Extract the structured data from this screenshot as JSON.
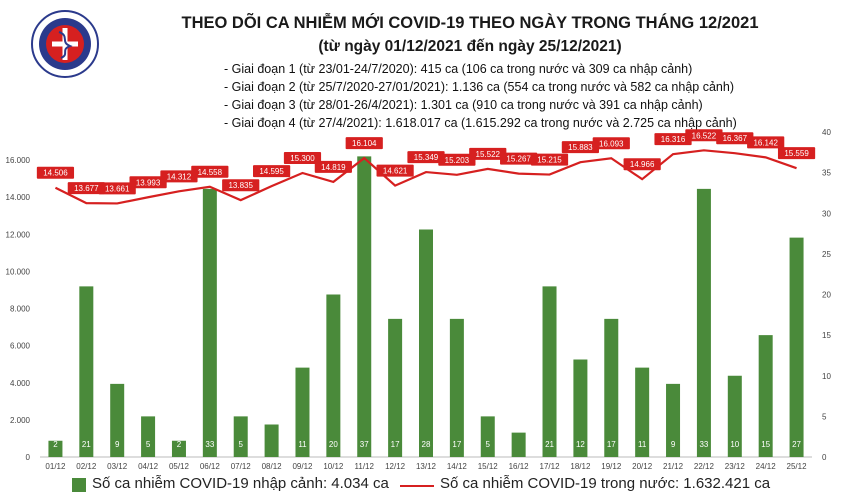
{
  "header": {
    "title": "THEO DÕI CA NHIỄM MỚI COVID-19 THEO NGÀY TRONG THÁNG 12/2021",
    "subtitle": "(từ ngày 01/12/2021 đến ngày 25/12/2021)",
    "phases": [
      "- Giai đoạn 1 (từ 23/01-24/7/2020): 415 ca (106 ca trong nước và 309 ca nhập cảnh)",
      "- Giai đoạn 2 (từ 25/7/2020-27/01/2021): 1.136 ca (554 ca trong nước và 582 ca nhập cảnh)",
      "- Giai đoạn 3 (từ 28/01-26/4/2021): 1.301 ca (910 ca trong nước và 391 ca nhập cảnh)",
      "- Giai đoạn 4 (từ 27/4/2021): 1.618.017 ca (1.615.292 ca trong nước và 2.725 ca nhập cảnh)"
    ]
  },
  "logo": {
    "text": "BỘ Y TẾ",
    "subtext": "MINISTRY OF HEALTH"
  },
  "legend": {
    "bar_label": "Số ca nhiễm COVID-19 nhập cảnh: 4.034 ca",
    "line_label": "Số ca nhiễm COVID-19 trong nước: 1.632.421 ca"
  },
  "colors": {
    "bar": "#4a8a3a",
    "line": "#d62020",
    "label_bg": "#d62020",
    "title": "#1a1a1a"
  },
  "chart_data": {
    "type": "bar",
    "categories": [
      "01/12",
      "02/12",
      "03/12",
      "04/12",
      "05/12",
      "06/12",
      "07/12",
      "08/12",
      "09/12",
      "10/12",
      "11/12",
      "12/12",
      "13/12",
      "14/12",
      "15/12",
      "16/12",
      "17/12",
      "18/12",
      "19/12",
      "20/12",
      "21/12",
      "22/12",
      "23/12",
      "24/12",
      "25/12"
    ],
    "series": [
      {
        "name": "Số ca nhiễm COVID-19 nhập cảnh: 4.034 ca",
        "type": "bar",
        "axis": "right",
        "values": [
          2,
          21,
          9,
          5,
          2,
          33,
          5,
          4,
          11,
          20,
          37,
          17,
          28,
          17,
          5,
          3,
          21,
          12,
          17,
          11,
          9,
          33,
          10,
          15,
          27
        ],
        "labels": [
          "2",
          "21",
          "9",
          "5",
          "2",
          "33",
          "5",
          "",
          "11",
          "20",
          "37",
          "17",
          "28",
          "17",
          "5",
          "",
          "21",
          "12",
          "17",
          "11",
          "9",
          "33",
          "10",
          "15",
          "27"
        ]
      },
      {
        "name": "Số ca nhiễm COVID-19 trong nước: 1.632.421 ca",
        "type": "line",
        "axis": "left",
        "values": [
          14506,
          13677,
          13661,
          13993,
          14312,
          14558,
          13835,
          14595,
          15300,
          14819,
          16104,
          14621,
          15349,
          15203,
          15522,
          15267,
          15215,
          15883,
          16093,
          14966,
          16316,
          16522,
          16367,
          16142,
          15559
        ],
        "labels": [
          "14.506",
          "13.677",
          "13.661",
          "13.993",
          "14.312",
          "14.558",
          "13.835",
          "14.595",
          "15.300",
          "14.819",
          "16.104",
          "14.621",
          "15.349",
          "15.203",
          "15.522",
          "15.267",
          "15.215",
          "15.883",
          "16.093",
          "14.966",
          "16.316",
          "16.522",
          "16.367",
          "16.142",
          "15.559"
        ]
      }
    ],
    "y_left": {
      "ylim": [
        0,
        16000
      ],
      "ticks": [
        "0",
        "2.000",
        "4.000",
        "6.000",
        "8.000",
        "10.000",
        "12.000",
        "14.000",
        "16.000"
      ]
    },
    "y_right": {
      "ylim": [
        0,
        40
      ],
      "ticks": [
        "0",
        "5",
        "10",
        "15",
        "20",
        "25",
        "30",
        "35",
        "40"
      ]
    }
  }
}
